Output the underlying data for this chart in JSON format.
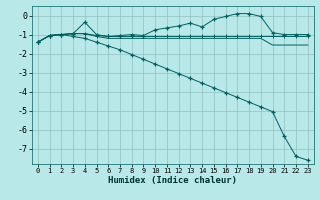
{
  "xlabel": "Humidex (Indice chaleur)",
  "bg_color": "#b8e8e8",
  "grid_color": "#90c0c0",
  "line_color": "#006060",
  "xlim": [
    -0.5,
    23.5
  ],
  "ylim": [
    -7.8,
    0.5
  ],
  "yticks": [
    0,
    -1,
    -2,
    -3,
    -4,
    -5,
    -6,
    -7
  ],
  "xticks": [
    0,
    1,
    2,
    3,
    4,
    5,
    6,
    7,
    8,
    9,
    10,
    11,
    12,
    13,
    14,
    15,
    16,
    17,
    18,
    19,
    20,
    21,
    22,
    23
  ],
  "s1_x": [
    0,
    1,
    2,
    3,
    4,
    5,
    6,
    7,
    8,
    9,
    10,
    11,
    12,
    13,
    14,
    15,
    16,
    17,
    18,
    19,
    20,
    21,
    22,
    23
  ],
  "s1_y": [
    -1.4,
    -1.05,
    -1.0,
    -0.95,
    -0.35,
    -1.0,
    -1.1,
    -1.05,
    -1.0,
    -1.05,
    -0.75,
    -0.65,
    -0.55,
    -0.4,
    -0.6,
    -0.2,
    -0.05,
    0.1,
    0.1,
    -0.05,
    -0.9,
    -1.0,
    -1.0,
    -1.0
  ],
  "s2_x": [
    0,
    1,
    2,
    3,
    4,
    5,
    6,
    7,
    8,
    9,
    10,
    11,
    12,
    13,
    14,
    15,
    16,
    17,
    18,
    19,
    20,
    21,
    22,
    23
  ],
  "s2_y": [
    -1.4,
    -1.05,
    -1.0,
    -0.95,
    -0.95,
    -1.05,
    -1.1,
    -1.1,
    -1.1,
    -1.1,
    -1.1,
    -1.1,
    -1.1,
    -1.1,
    -1.1,
    -1.1,
    -1.1,
    -1.1,
    -1.1,
    -1.1,
    -1.1,
    -1.1,
    -1.1,
    -1.1
  ],
  "s3_x": [
    0,
    1,
    2,
    3,
    4,
    5,
    6,
    7,
    8,
    9,
    10,
    11,
    12,
    13,
    14,
    15,
    16,
    17,
    18,
    19,
    20,
    21,
    22,
    23
  ],
  "s3_y": [
    -1.4,
    -1.05,
    -1.0,
    -0.95,
    -0.95,
    -1.1,
    -1.2,
    -1.2,
    -1.2,
    -1.2,
    -1.2,
    -1.2,
    -1.2,
    -1.2,
    -1.2,
    -1.2,
    -1.2,
    -1.2,
    -1.2,
    -1.2,
    -1.55,
    -1.55,
    -1.55,
    -1.55
  ],
  "s4_x": [
    0,
    1,
    2,
    3,
    4,
    5,
    6,
    7,
    8,
    9,
    10,
    11,
    12,
    13,
    14,
    15,
    16,
    17,
    18,
    19,
    20,
    21,
    22,
    23
  ],
  "s4_y": [
    -1.4,
    -1.05,
    -1.0,
    -1.1,
    -1.2,
    -1.4,
    -1.6,
    -1.8,
    -2.05,
    -2.3,
    -2.55,
    -2.8,
    -3.05,
    -3.3,
    -3.55,
    -3.8,
    -4.05,
    -4.3,
    -4.55,
    -4.8,
    -5.05,
    -6.35,
    -7.4,
    -7.6
  ]
}
